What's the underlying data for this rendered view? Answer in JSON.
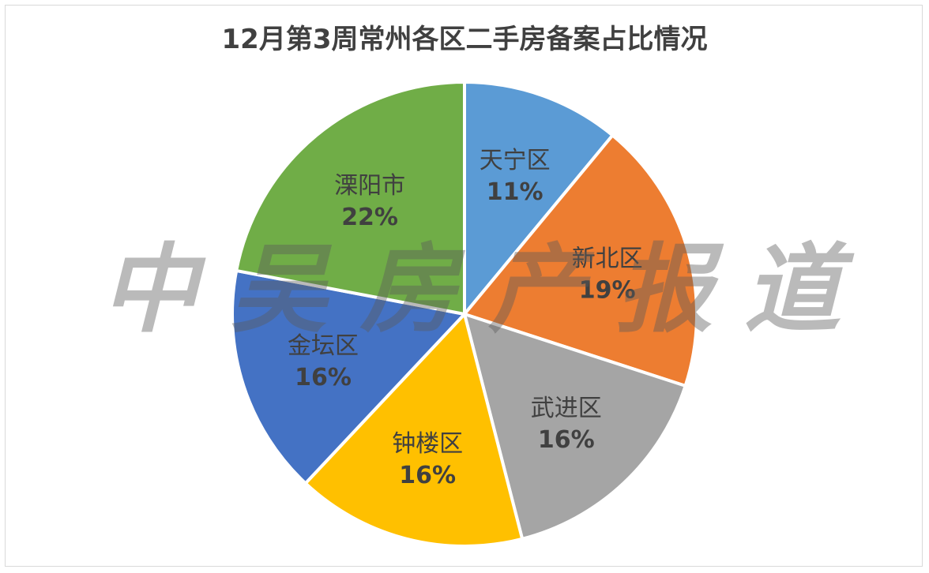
{
  "chart_data": {
    "type": "pie",
    "title": "12月第3周常州各区二手房备案占比情况",
    "start_angle_deg": 0,
    "direction": "clockwise",
    "slices": [
      {
        "label": "天宁区",
        "value": 11,
        "value_text": "11%",
        "color": "#5b9bd5"
      },
      {
        "label": "新北区",
        "value": 19,
        "value_text": "19%",
        "color": "#ed7d31"
      },
      {
        "label": "武进区",
        "value": 16,
        "value_text": "16%",
        "color": "#a5a5a5"
      },
      {
        "label": "钟楼区",
        "value": 16,
        "value_text": "16%",
        "color": "#ffc000"
      },
      {
        "label": "金坛区",
        "value": 16,
        "value_text": "16%",
        "color": "#4472c4"
      },
      {
        "label": "溧阳市",
        "value": 22,
        "value_text": "22%",
        "color": "#70ad47"
      }
    ]
  },
  "watermark": {
    "text": "中吴房产报道",
    "characters": [
      "中",
      "吴",
      "房",
      "产",
      "报",
      "道"
    ]
  }
}
